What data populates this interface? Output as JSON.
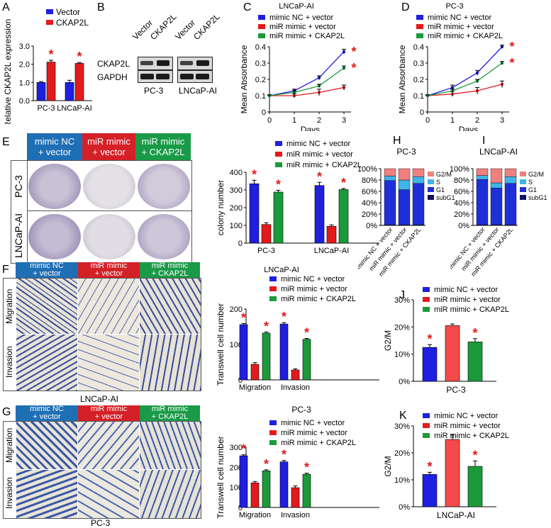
{
  "colors": {
    "blue": "#1f1fe0",
    "red": "#e31a1c",
    "green": "#1a9a3a",
    "hdr_blue": "#1f6fb5",
    "hdr_red": "#d42027",
    "hdr_green": "#1a9a48",
    "g2m": "#f08080",
    "s": "#3fb4e8",
    "g1": "#1f2fd8",
    "subg1": "#0f1260"
  },
  "legend": {
    "nc": "mimic NC  + vector",
    "mir": "miR mimic + vector",
    "ck": "miR mimic + CKAP2L",
    "vector": "Vector",
    "ckap2l": "CKAP2L"
  },
  "panels": {
    "A": "A",
    "B": "B",
    "C": "C",
    "D": "D",
    "E": "E",
    "F": "F",
    "G": "G",
    "H": "H",
    "I": "I",
    "J": "J",
    "K": "K"
  },
  "star": "*",
  "blot": {
    "lane_vector": "Vector",
    "lane_ckap2l": "CKAP2L",
    "row1": "CKAP2L",
    "row2": "GAPDH",
    "cell1": "PC-3",
    "cell2": "LNCaP-AI"
  },
  "headers": {
    "nc_l1": "mimic NC",
    "nc_l2": "+ vector",
    "mir_l1": "miR mimic",
    "mir_l2": "+ vector",
    "ck_l1": "miR mimic",
    "ck_l2": "+ CKAP2L"
  },
  "rows": {
    "pc3": "PC-3",
    "lncap": "LNCaP-AI",
    "migration": "Migration",
    "invasion": "Invasion"
  },
  "captions": {
    "F": "LNCaP-AI",
    "G": "PC-3"
  },
  "chart_data": [
    {
      "id": "A",
      "type": "bar",
      "ylabel": "Relative CKAP2L expression",
      "ylim": [
        0,
        3
      ],
      "yticks": [
        "0.0",
        "1.0",
        "2.0",
        "3.0"
      ],
      "categories": [
        "PC-3",
        "LNCaP-AI"
      ],
      "series": [
        {
          "name": "Vector",
          "values": [
            1.0,
            1.0
          ],
          "err": [
            0.05,
            0.12
          ]
        },
        {
          "name": "CKAP2L",
          "values": [
            2.12,
            2.05
          ],
          "err": [
            0.1,
            0.05
          ]
        }
      ]
    },
    {
      "id": "C",
      "type": "line",
      "title": "LNCaP-AI",
      "xlabel": "Days",
      "ylabel": "Mean Absorbance",
      "ylim": [
        0,
        0.4
      ],
      "x": [
        0,
        1,
        2,
        3
      ],
      "yticks": [
        "0",
        "0.1",
        "0.2",
        "0.3",
        "0.4"
      ],
      "xticks": [
        "0",
        "1",
        "2",
        "3"
      ],
      "series": [
        {
          "name": "mimic NC  + vector",
          "values": [
            0.1,
            0.13,
            0.21,
            0.37
          ],
          "err": [
            0.005,
            0.01,
            0.012,
            0.015
          ]
        },
        {
          "name": "miR mimic + vector",
          "values": [
            0.1,
            0.1,
            0.12,
            0.15
          ],
          "err": [
            0.005,
            0.012,
            0.02,
            0.015
          ]
        },
        {
          "name": "miR mimic + CKAP2L",
          "values": [
            0.1,
            0.12,
            0.16,
            0.27
          ],
          "err": [
            0.005,
            0.01,
            0.01,
            0.012
          ]
        }
      ]
    },
    {
      "id": "D",
      "type": "line",
      "title": "PC-3",
      "xlabel": "Days",
      "ylabel": "Mean Absorbance",
      "ylim": [
        0,
        0.4
      ],
      "x": [
        0,
        1,
        2,
        3
      ],
      "yticks": [
        "0",
        "0.1",
        "0.2",
        "0.3",
        "0.4"
      ],
      "xticks": [
        "0",
        "1",
        "2",
        "3"
      ],
      "series": [
        {
          "name": "mimic NC  + vector",
          "values": [
            0.1,
            0.15,
            0.24,
            0.4
          ],
          "err": [
            0.005,
            0.015,
            0.015,
            0.01
          ]
        },
        {
          "name": "miR mimic + vector",
          "values": [
            0.1,
            0.11,
            0.13,
            0.17
          ],
          "err": [
            0.005,
            0.015,
            0.02,
            0.02
          ]
        },
        {
          "name": "miR mimic + CKAP2L",
          "values": [
            0.1,
            0.13,
            0.19,
            0.3
          ],
          "err": [
            0.005,
            0.01,
            0.01,
            0.01
          ]
        }
      ]
    },
    {
      "id": "E",
      "type": "bar",
      "ylabel": "colony number",
      "ylim": [
        0,
        400
      ],
      "yticks": [
        "0",
        "100",
        "200",
        "300",
        "400"
      ],
      "categories": [
        "PC-3",
        "LNCaP-AI"
      ],
      "series": [
        {
          "name": "mimic NC  + vector",
          "values": [
            335,
            325
          ],
          "err": [
            20,
            18
          ]
        },
        {
          "name": "miR mimic + vector",
          "values": [
            105,
            95
          ],
          "err": [
            10,
            8
          ]
        },
        {
          "name": "miR mimic + CKAP2L",
          "values": [
            288,
            302
          ],
          "err": [
            10,
            6
          ]
        }
      ]
    },
    {
      "id": "F",
      "type": "bar",
      "title": "LNCaP-AI",
      "ylabel": "Transwell cell number",
      "ylim": [
        0,
        250
      ],
      "yticks": [
        "0",
        "100",
        "200"
      ],
      "categories": [
        "Migration",
        "Invasion"
      ],
      "series": [
        {
          "name": "mimic NC  + vector",
          "values": [
            195,
            197
          ],
          "err": [
            4,
            5
          ]
        },
        {
          "name": "miR mimic + vector",
          "values": [
            55,
            35
          ],
          "err": [
            6,
            4
          ]
        },
        {
          "name": "miR mimic + CKAP2L",
          "values": [
            165,
            143
          ],
          "err": [
            4,
            3
          ]
        }
      ]
    },
    {
      "id": "G",
      "type": "bar",
      "title": "PC-3",
      "ylabel": "Transwell cell number",
      "ylim": [
        0,
        350
      ],
      "yticks": [
        "0",
        "100",
        "200",
        "300"
      ],
      "categories": [
        "Migration",
        "Invasion"
      ],
      "series": [
        {
          "name": "mimic NC  + vector",
          "values": [
            300,
            265
          ],
          "err": [
            6,
            8
          ]
        },
        {
          "name": "miR mimic + vector",
          "values": [
            143,
            115
          ],
          "err": [
            8,
            10
          ]
        },
        {
          "name": "miR mimic + CKAP2L",
          "values": [
            213,
            193
          ],
          "err": [
            6,
            6
          ]
        }
      ]
    },
    {
      "id": "H",
      "type": "bar",
      "title": "PC-3",
      "stacked": true,
      "ylim": [
        0,
        100
      ],
      "yticks": [
        "0%",
        "20%",
        "40%",
        "60%",
        "80%",
        "100%"
      ],
      "categories": [
        "mimic NC + vector",
        "miR mimic + vector",
        "miR mimic + CKAP2L"
      ],
      "series": [
        {
          "name": "subG1",
          "values": [
            1,
            1,
            1
          ]
        },
        {
          "name": "G1",
          "values": [
            78,
            62,
            73
          ]
        },
        {
          "name": "S",
          "values": [
            8,
            17,
            12
          ]
        },
        {
          "name": "G2/M",
          "values": [
            13,
            20,
            14
          ]
        }
      ]
    },
    {
      "id": "I",
      "type": "bar",
      "title": "LNCaP-AI",
      "stacked": true,
      "ylim": [
        0,
        100
      ],
      "yticks": [
        "0%",
        "20%",
        "40%",
        "60%",
        "80%",
        "100%"
      ],
      "categories": [
        "mimic NC + vector",
        "miR mimic + vector",
        "miR mimic + CKAP2L"
      ],
      "series": [
        {
          "name": "subG1",
          "values": [
            1,
            1,
            1
          ]
        },
        {
          "name": "G1",
          "values": [
            80,
            65,
            73
          ]
        },
        {
          "name": "S",
          "values": [
            7,
            9,
            12
          ]
        },
        {
          "name": "G2/M",
          "values": [
            12,
            25,
            14
          ]
        }
      ]
    },
    {
      "id": "J",
      "type": "bar",
      "ylabel": "G2/M",
      "xlabel": "PC-3",
      "ylim": [
        0,
        30
      ],
      "yticks": [
        "0%",
        "10%",
        "20%",
        "30%"
      ],
      "categories": [
        "mimic NC  + vector",
        "miR mimic + vector",
        "miR mimic + CKAP2L"
      ],
      "values": [
        12.5,
        20.5,
        14.5
      ],
      "err": [
        1.0,
        0.6,
        1.2
      ]
    },
    {
      "id": "K",
      "type": "bar",
      "ylabel": "G2/M",
      "xlabel": "LNCaP-AI",
      "ylim": [
        0,
        30
      ],
      "yticks": [
        "0%",
        "10%",
        "20%",
        "30%"
      ],
      "categories": [
        "mimic NC  + vector",
        "miR mimic + vector",
        "miR mimic + CKAP2L"
      ],
      "values": [
        12,
        25,
        15
      ],
      "err": [
        0.8,
        1.8,
        2.0
      ]
    }
  ]
}
